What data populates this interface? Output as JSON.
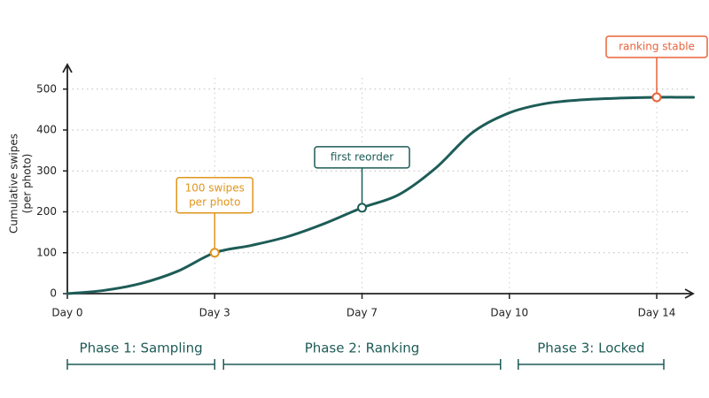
{
  "chart_data": {
    "type": "line",
    "ylabel": [
      "Cumulative swipes",
      "(per photo)"
    ],
    "categories": [
      "Day 0",
      null,
      null,
      null,
      "Day 3",
      null,
      null,
      null,
      "Day 7",
      null,
      null,
      null,
      "Day 10",
      null,
      null,
      null,
      "Day 14",
      null
    ],
    "series": [
      {
        "name": "Cumulative swipes",
        "color": "#1d5c57",
        "values": [
          0,
          8,
          25,
          55,
          100,
          118,
          140,
          172,
          210,
          242,
          307,
          394,
          442,
          465,
          474,
          478,
          480,
          480
        ]
      }
    ],
    "ylim": [
      0,
      560
    ],
    "yticks": [
      0,
      100,
      200,
      300,
      400,
      500
    ],
    "grid": true,
    "annotations": [
      {
        "at": "Day 3",
        "text": [
          "100 swipes",
          "per photo"
        ],
        "color": "#e0961c"
      },
      {
        "at": "Day 7",
        "text": [
          "first reorder"
        ],
        "color": "#1d5c57"
      },
      {
        "at": "Day 14",
        "text": [
          "ranking stable"
        ],
        "color": "#e8633a"
      }
    ],
    "phases": [
      {
        "label": "Phase 1: Sampling",
        "from": "Day 0",
        "to": "Day 3"
      },
      {
        "label": "Phase 2: Ranking",
        "from": "Day 3",
        "to": "Day 10"
      },
      {
        "label": "Phase 3: Locked",
        "from": "Day 10",
        "to": "Day 14"
      }
    ]
  }
}
